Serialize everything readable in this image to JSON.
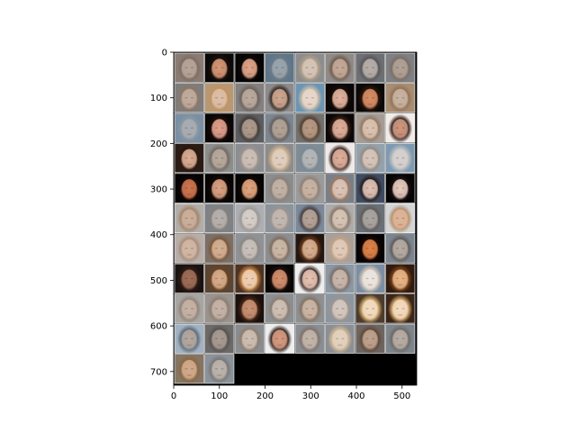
{
  "chart_data": {
    "type": "heatmap",
    "title": "",
    "xlabel": "",
    "ylabel": "",
    "xlim": [
      0,
      532
    ],
    "ylim": [
      730,
      0
    ],
    "grid": false,
    "xticks": [
      0,
      100,
      200,
      300,
      400,
      500
    ],
    "yticks": [
      0,
      100,
      200,
      300,
      400,
      500,
      600,
      700
    ],
    "image": {
      "rows": 11,
      "cols": 8,
      "tiles_present": 82,
      "tile_size": 64,
      "tile_separator_color": "#ffffff",
      "empty_fill": "#000000"
    },
    "tiles": [
      {
        "bg": "#8a7c74",
        "face": "#b8a59a",
        "hair": "#7d6a5f"
      },
      {
        "bg": "#0b0907",
        "face": "#d79875",
        "hair": "#1b120d"
      },
      {
        "bg": "#050404",
        "face": "#e2a68a",
        "hair": "#100a08"
      },
      {
        "bg": "#5f7689",
        "face": "#9aa5ad",
        "hair": "#6d7b86"
      },
      {
        "bg": "#8d8d8d",
        "face": "#d6c6b9",
        "hair": "#b59f87"
      },
      {
        "bg": "#8f8a87",
        "face": "#c5aa98",
        "hair": "#6a5848"
      },
      {
        "bg": "#6d6f73",
        "face": "#b9b0aa",
        "hair": "#565456"
      },
      {
        "bg": "#7f8084",
        "face": "#b0a294",
        "hair": "#7a6c62"
      },
      {
        "bg": "#7f7c79",
        "face": "#c1ac9e",
        "hair": "#8d7667"
      },
      {
        "bg": "#b89874",
        "face": "#dcbfa8",
        "hair": "#c0935f"
      },
      {
        "bg": "#83807f",
        "face": "#bcab9f",
        "hair": "#6a5e56"
      },
      {
        "bg": "#8c8a8c",
        "face": "#d0a890",
        "hair": "#2d221a"
      },
      {
        "bg": "#6d95b2",
        "face": "#e9d7cc",
        "hair": "#cfbfa7"
      },
      {
        "bg": "#0a0706",
        "face": "#e3b4a0",
        "hair": "#1a0c08"
      },
      {
        "bg": "#0b0807",
        "face": "#d98e65",
        "hair": "#2a160c"
      },
      {
        "bg": "#a88d70",
        "face": "#cab4a2",
        "hair": "#8f7057"
      },
      {
        "bg": "#7a8fa3",
        "face": "#a9adb2",
        "hair": "#8a97a2"
      },
      {
        "bg": "#0a0606",
        "face": "#e1a18c",
        "hair": "#1c0d0b"
      },
      {
        "bg": "#5c5d60",
        "face": "#b09c8d",
        "hair": "#3f3833"
      },
      {
        "bg": "#7c8690",
        "face": "#b3a497",
        "hair": "#635a55"
      },
      {
        "bg": "#72706c",
        "face": "#b99b84",
        "hair": "#4f3a2b"
      },
      {
        "bg": "#0b0707",
        "face": "#e0b09c",
        "hair": "#3a2015"
      },
      {
        "bg": "#a69c94",
        "face": "#dcc4b2",
        "hair": "#8f7662"
      },
      {
        "bg": "#f2ece8",
        "face": "#d09880",
        "hair": "#1f0d09"
      },
      {
        "bg": "#2a1c15",
        "face": "#dcae95",
        "hair": "#2a160d"
      },
      {
        "bg": "#8d8d8b",
        "face": "#b8aa9d",
        "hair": "#6f655e"
      },
      {
        "bg": "#8a8d92",
        "face": "#ccc0b7",
        "hair": "#9e938b"
      },
      {
        "bg": "#8e8c8a",
        "face": "#e0cfc0",
        "hair": "#d5b690"
      },
      {
        "bg": "#7f8c96",
        "face": "#b6b7b8",
        "hair": "#7c8891"
      },
      {
        "bg": "#efe9e7",
        "face": "#e1b09d",
        "hair": "#23100a"
      },
      {
        "bg": "#94a2ae",
        "face": "#d6c6bb",
        "hair": "#97887e"
      },
      {
        "bg": "#7d9ab2",
        "face": "#d6d1d0",
        "hair": "#c6c2bf"
      },
      {
        "bg": "#050303",
        "face": "#cf7550",
        "hair": "#130805"
      },
      {
        "bg": "#070504",
        "face": "#dca284",
        "hair": "#180c07"
      },
      {
        "bg": "#060504",
        "face": "#e3a57e",
        "hair": "#120905"
      },
      {
        "bg": "#8a8c8e",
        "face": "#c3b3a6",
        "hair": "#8a7f76"
      },
      {
        "bg": "#9a9a9b",
        "face": "#c9b4a3",
        "hair": "#8d7e72"
      },
      {
        "bg": "#7a7f87",
        "face": "#dcc5b9",
        "hair": "#a1785e"
      },
      {
        "bg": "#3e4b60",
        "face": "#e1c3b6",
        "hair": "#231a19"
      },
      {
        "bg": "#050405",
        "face": "#e8cdc0",
        "hair": "#1c1012"
      },
      {
        "bg": "#b3ada8",
        "face": "#ccb09c",
        "hair": "#a08067"
      },
      {
        "bg": "#7e8286",
        "face": "#b7b1ad",
        "hair": "#86807b"
      },
      {
        "bg": "#adaeb1",
        "face": "#d7cfc9",
        "hair": "#9a9592"
      },
      {
        "bg": "#8b939b",
        "face": "#c3b9b2",
        "hair": "#9e948c"
      },
      {
        "bg": "#7b8899",
        "face": "#b8a59a",
        "hair": "#403734"
      },
      {
        "bg": "#aeacaa",
        "face": "#d8c6b7",
        "hair": "#83705f"
      },
      {
        "bg": "#6a7077",
        "face": "#aaa6a2",
        "hair": "#5f5a57"
      },
      {
        "bg": "#d4d5d6",
        "face": "#dfb598",
        "hair": "#b28963"
      },
      {
        "bg": "#b8aea8",
        "face": "#d3b8a5",
        "hair": "#a48977"
      },
      {
        "bg": "#7c6f66",
        "face": "#d6b093",
        "hair": "#7a5538"
      },
      {
        "bg": "#8f9297",
        "face": "#c9c1bb",
        "hair": "#8d8680"
      },
      {
        "bg": "#8c8d8f",
        "face": "#cdb9a8",
        "hair": "#7f6a58"
      },
      {
        "bg": "#23160f",
        "face": "#d9b092",
        "hair": "#6a3a1d"
      },
      {
        "bg": "#a79f9a",
        "face": "#e2cbbb",
        "hair": "#c5a182"
      },
      {
        "bg": "#050303",
        "face": "#e0844a",
        "hair": "#1b0804"
      },
      {
        "bg": "#7b8590",
        "face": "#b6aca4",
        "hair": "#5f5752"
      },
      {
        "bg": "#1a1210",
        "face": "#a06e57",
        "hair": "#2f1c15"
      },
      {
        "bg": "#5a4533",
        "face": "#d7ad8c",
        "hair": "#6a4322"
      },
      {
        "bg": "#4e3321",
        "face": "#f0d0b4",
        "hair": "#c78746"
      },
      {
        "bg": "#070505",
        "face": "#d58f6e",
        "hair": "#1d100b"
      },
      {
        "bg": "#eeeeee",
        "face": "#e8c4b2",
        "hair": "#241410"
      },
      {
        "bg": "#8b97a3",
        "face": "#cab8ac",
        "hair": "#7a6a60"
      },
      {
        "bg": "#7b8ea2",
        "face": "#ece5df",
        "hair": "#d8c8b6"
      },
      {
        "bg": "#311a0e",
        "face": "#e9b68a",
        "hair": "#7a4518"
      },
      {
        "bg": "#a7a6a3",
        "face": "#c7b3a5",
        "hair": "#8f7f74"
      },
      {
        "bg": "#9a938e",
        "face": "#c5b4a7",
        "hair": "#8c7b6f"
      },
      {
        "bg": "#1b100c",
        "face": "#c99273",
        "hair": "#4a2818"
      },
      {
        "bg": "#8c8f91",
        "face": "#cfc1b6",
        "hair": "#8c7b6f"
      },
      {
        "bg": "#8d8f91",
        "face": "#cdb6a6",
        "hair": "#83705f"
      },
      {
        "bg": "#8c96a1",
        "face": "#d4c8c1",
        "hair": "#a29389"
      },
      {
        "bg": "#4c3b2c",
        "face": "#f2dcc2",
        "hair": "#e0b774"
      },
      {
        "bg": "#3a2516",
        "face": "#f4dcc0",
        "hair": "#e0b276"
      },
      {
        "bg": "#a3b2c2",
        "face": "#b5a89f",
        "hair": "#556471"
      },
      {
        "bg": "#6c6a68",
        "face": "#a99c93",
        "hair": "#54504d"
      },
      {
        "bg": "#8a8c8f",
        "face": "#cfbfb3",
        "hair": "#8e7c6c"
      },
      {
        "bg": "#ededed",
        "face": "#d89c80",
        "hair": "#1e0d09"
      },
      {
        "bg": "#8a8e92",
        "face": "#c4b6ab",
        "hair": "#7d7068"
      },
      {
        "bg": "#8c8f93",
        "face": "#e3d2bf",
        "hair": "#d4bb95"
      },
      {
        "bg": "#6d6560",
        "face": "#c0a48f",
        "hair": "#5f4637"
      },
      {
        "bg": "#7d858d",
        "face": "#b8aea6",
        "hair": "#6d6660"
      },
      {
        "bg": "#857563",
        "face": "#d2ab8d",
        "hair": "#8a6642"
      },
      {
        "bg": "#8b929a",
        "face": "#bdb4ae",
        "hair": "#777470"
      }
    ]
  }
}
